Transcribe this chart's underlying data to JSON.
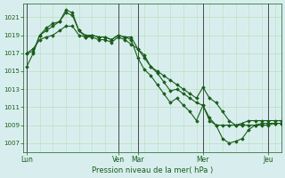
{
  "background_color": "#d8eeee",
  "plot_bg_color": "#d8eeee",
  "grid_color": "#bbddbb",
  "line_color": "#1a5c1a",
  "xlabel": "Pression niveau de la mer( hPa )",
  "ylim": [
    1006.0,
    1022.5
  ],
  "yticks": [
    1007,
    1009,
    1011,
    1013,
    1015,
    1017,
    1019,
    1021
  ],
  "x_day_labels": [
    "Lun",
    "Ven",
    "Mar",
    "Mer",
    "Jeu"
  ],
  "x_day_positions": [
    0,
    14,
    17,
    27,
    37
  ],
  "xlim": [
    -0.5,
    39
  ],
  "n_points": 40,
  "series": [
    [
      1015.5,
      1017.0,
      1019.0,
      1019.8,
      1020.3,
      1020.5,
      1021.5,
      1021.2,
      1019.5,
      1018.8,
      1019.0,
      1018.8,
      1018.8,
      1018.5,
      1019.0,
      1018.8,
      1018.8,
      1017.5,
      1016.8,
      1015.5,
      1014.8,
      1013.8,
      1012.8,
      1013.0,
      1012.5,
      1012.0,
      1011.5,
      1011.2,
      1009.5,
      1009.0,
      1009.0,
      1009.0,
      1009.0,
      1009.0,
      1009.0,
      1009.0,
      1009.0,
      1009.0,
      1009.2,
      1009.2
    ],
    [
      1017.0,
      1017.2,
      1019.0,
      1019.5,
      1020.0,
      1020.5,
      1021.8,
      1021.5,
      1019.5,
      1019.0,
      1019.0,
      1018.8,
      1018.8,
      1018.5,
      1019.0,
      1018.8,
      1018.5,
      1016.5,
      1015.2,
      1014.5,
      1013.5,
      1012.5,
      1011.5,
      1012.0,
      1011.2,
      1010.5,
      1009.5,
      1011.2,
      1009.8,
      1009.0,
      1007.5,
      1007.0,
      1007.2,
      1007.5,
      1008.5,
      1009.0,
      1009.2,
      1009.2,
      1009.2,
      1009.2
    ],
    [
      1017.0,
      1017.5,
      1018.5,
      1018.8,
      1019.0,
      1019.5,
      1020.0,
      1020.0,
      1019.0,
      1018.8,
      1018.8,
      1018.5,
      1018.5,
      1018.2,
      1018.8,
      1018.5,
      1018.0,
      1017.5,
      1016.5,
      1015.5,
      1015.0,
      1014.5,
      1014.0,
      1013.5,
      1013.0,
      1012.5,
      1012.0,
      1013.2,
      1012.0,
      1011.5,
      1010.5,
      1009.5,
      1009.0,
      1009.2,
      1009.5,
      1009.5,
      1009.5,
      1009.5,
      1009.5,
      1009.5
    ]
  ],
  "marker": "D",
  "marker_size": 1.8,
  "line_width": 0.8
}
